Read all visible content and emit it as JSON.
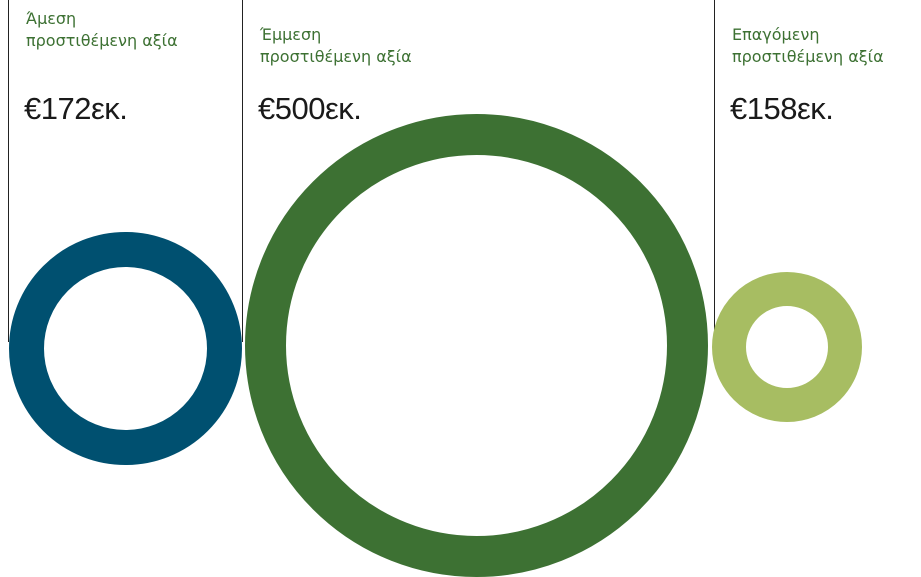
{
  "panels": [
    {
      "title_line1": "Άμεση",
      "title_line2": "προστιθέμενη αξία",
      "value": "€172εκ.",
      "ring_color": "#005070",
      "title_color": "#3d7133"
    },
    {
      "title_line1": "Έμμεση",
      "title_line2": "προστιθέμενη αξία",
      "value": "€500εκ.",
      "ring_color": "#3d7133",
      "title_color": "#3d7133"
    },
    {
      "title_line1": "Επαγόμενη",
      "title_line2": "προστιθέμενη αξία",
      "value": "€158εκ.",
      "ring_color": "#a7bd62",
      "title_color": "#3d7133"
    }
  ]
}
